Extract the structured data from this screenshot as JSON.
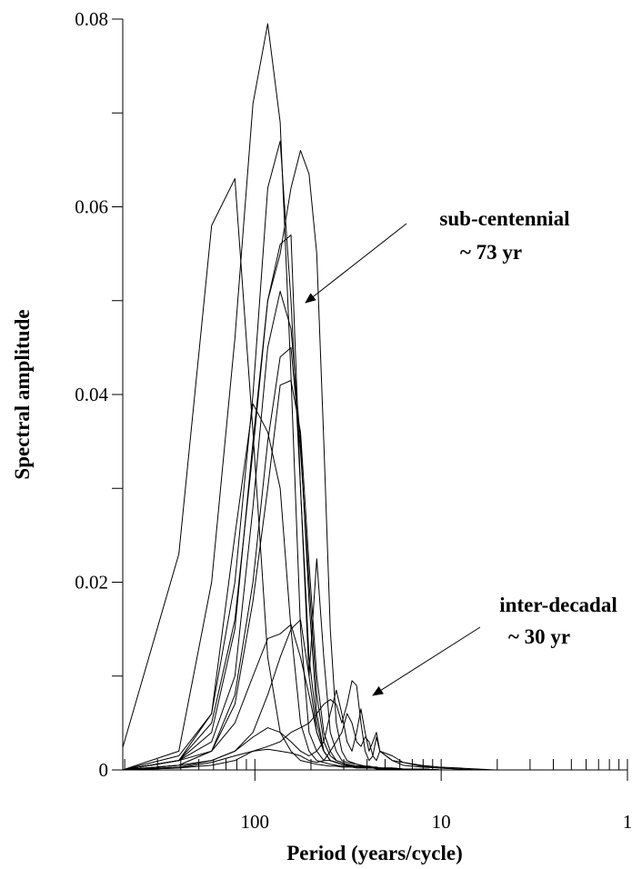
{
  "chart_data": {
    "type": "line",
    "x_label": "Period (years/cycle)",
    "y_label": "Spectral amplitude",
    "x_log": true,
    "xlim": [
      512,
      1
    ],
    "xticks": [
      100,
      10,
      1
    ],
    "xminor_ticks": [
      500,
      333.3,
      250,
      200,
      166.7,
      142.9,
      125,
      111.1,
      50,
      33.33,
      25,
      20,
      16.67,
      14.29,
      12.5,
      11.11,
      5,
      3.333,
      2.5,
      2,
      1.667,
      1.429,
      1.25,
      1.111
    ],
    "ylim": [
      0,
      0.08
    ],
    "yticks": [
      0,
      0.02,
      0.04,
      0.06,
      0.08
    ],
    "yminor_ticks": [
      0.01,
      0.03,
      0.05,
      0.07
    ],
    "line_color": "#000000",
    "annotations": [
      {
        "lines": [
          "sub-centennial",
          "~ 73 yr"
        ]
      },
      {
        "lines": [
          "inter-decadal",
          "~ 30 yr"
        ]
      }
    ],
    "x": [
      512,
      256,
      170.7,
      128,
      102.4,
      85.33,
      73.14,
      64,
      56.89,
      51.2,
      46.55,
      42.67,
      39.38,
      36.57,
      34.13,
      32,
      30.12,
      28.44,
      26.95,
      25.6,
      24.38,
      23.27,
      22.26,
      21.33,
      18.29,
      16,
      12.8,
      10.24,
      8,
      6.4,
      5.12
    ],
    "series": [
      {
        "values": [
          0.0024,
          0.023,
          0.058,
          0.063,
          0.036,
          0.012,
          0.004,
          0.002,
          0.001,
          0.0008,
          0.0006,
          0.0005,
          0.0004,
          0.0004,
          0.0003,
          0.0003,
          0.0003,
          0.0002,
          0.0002,
          0.0002,
          0.0002,
          0.0002,
          0.0001,
          0.0001,
          0.0001,
          0.0001,
          0.0001,
          0,
          0,
          0,
          0
        ]
      },
      {
        "values": [
          0,
          0.002,
          0.02,
          0.046,
          0.071,
          0.0795,
          0.069,
          0.042,
          0.015,
          0.004,
          0.002,
          0.001,
          0.001,
          0.0008,
          0.0006,
          0.0005,
          0.0005,
          0.0004,
          0.0004,
          0.0003,
          0.0003,
          0.0003,
          0.0002,
          0.0002,
          0.0002,
          0.0001,
          0.0001,
          0,
          0,
          0,
          0
        ]
      },
      {
        "values": [
          0,
          0.001,
          0.005,
          0.016,
          0.034,
          0.05,
          0.055,
          0.062,
          0.066,
          0.0635,
          0.055,
          0.035,
          0.015,
          0.005,
          0.002,
          0.001,
          0.0008,
          0.0006,
          0.0005,
          0.0004,
          0.0004,
          0.0003,
          0.0003,
          0.0002,
          0.0002,
          0.0001,
          0.0001,
          0,
          0,
          0,
          0
        ]
      },
      {
        "values": [
          0,
          0.001,
          0.006,
          0.02,
          0.04,
          0.062,
          0.067,
          0.05,
          0.03,
          0.012,
          0.005,
          0.002,
          0.001,
          0.0008,
          0.0006,
          0.0005,
          0.0005,
          0.0004,
          0.0003,
          0.0003,
          0.0003,
          0.0002,
          0.0002,
          0.0002,
          0.0001,
          0.0001,
          0.0001,
          0,
          0,
          0,
          0
        ]
      },
      {
        "values": [
          0,
          0.001,
          0.004,
          0.015,
          0.035,
          0.05,
          0.056,
          0.057,
          0.03,
          0.01,
          0.004,
          0.002,
          0.001,
          0.0008,
          0.0006,
          0.0005,
          0.0004,
          0.0004,
          0.0003,
          0.0003,
          0.0002,
          0.0002,
          0.0002,
          0.0001,
          0.0001,
          0.0001,
          0,
          0,
          0,
          0,
          0
        ]
      },
      {
        "values": [
          0,
          0.001,
          0.003,
          0.01,
          0.028,
          0.045,
          0.051,
          0.047,
          0.035,
          0.018,
          0.006,
          0.002,
          0.001,
          0.0008,
          0.0006,
          0.0005,
          0.0004,
          0.0004,
          0.0003,
          0.0003,
          0.0002,
          0.0002,
          0.0002,
          0.0001,
          0.0001,
          0.0001,
          0,
          0,
          0,
          0,
          0
        ]
      },
      {
        "values": [
          0,
          0.001,
          0.002,
          0.008,
          0.02,
          0.035,
          0.044,
          0.045,
          0.034,
          0.02,
          0.008,
          0.003,
          0.0015,
          0.001,
          0.0008,
          0.0006,
          0.0005,
          0.0004,
          0.0004,
          0.0003,
          0.0003,
          0.0002,
          0.0002,
          0.0002,
          0.0001,
          0.0001,
          0.0001,
          0,
          0,
          0,
          0
        ]
      },
      {
        "values": [
          0,
          0.0005,
          0.002,
          0.007,
          0.018,
          0.03,
          0.041,
          0.0415,
          0.036,
          0.022,
          0.01,
          0.004,
          0.002,
          0.001,
          0.0008,
          0.0006,
          0.0005,
          0.0004,
          0.0004,
          0.0003,
          0.0003,
          0.0002,
          0.0002,
          0.0002,
          0.0001,
          0.0001,
          0.0001,
          0,
          0,
          0,
          0
        ]
      },
      {
        "values": [
          0,
          0.0015,
          0.006,
          0.025,
          0.039,
          0.036,
          0.03,
          0.015,
          0.005,
          0.002,
          0.001,
          0.0008,
          0.0006,
          0.0005,
          0.0004,
          0.0004,
          0.0003,
          0.0003,
          0.0003,
          0.0002,
          0.0002,
          0.0002,
          0.0002,
          0.0001,
          0.0001,
          0.0001,
          0,
          0,
          0,
          0,
          0
        ]
      },
      {
        "values": [
          0,
          0.0005,
          0.001,
          0.002,
          0.004,
          0.008,
          0.012,
          0.015,
          0.016,
          0.01,
          0.0225,
          0.012,
          0.004,
          0.002,
          0.001,
          0.0008,
          0.0007,
          0.0006,
          0.0005,
          0.0004,
          0.0004,
          0.0003,
          0.0003,
          0.0002,
          0.0002,
          0.0001,
          0.0001,
          0,
          0,
          0,
          0
        ]
      },
      {
        "values": [
          0,
          0.0005,
          0.002,
          0.005,
          0.01,
          0.014,
          0.0145,
          0.0155,
          0.012,
          0.008,
          0.004,
          0.002,
          0.001,
          0.0008,
          0.0006,
          0.0005,
          0.0004,
          0.0004,
          0.0003,
          0.0003,
          0.0002,
          0.0002,
          0.0002,
          0.0001,
          0.0001,
          0.0001,
          0,
          0,
          0,
          0,
          0
        ]
      },
      {
        "values": [
          0,
          0.0002,
          0.0005,
          0.001,
          0.002,
          0.0025,
          0.003,
          0.004,
          0.0045,
          0.005,
          0.006,
          0.007,
          0.0075,
          0.007,
          0.005,
          0.007,
          0.0095,
          0.009,
          0.005,
          0.002,
          0.001,
          0.0015,
          0.0035,
          0.002,
          0.001,
          0.0008,
          0.0005,
          0.0003,
          0.0002,
          0.0001,
          0
        ]
      },
      {
        "values": [
          0,
          0.0003,
          0.001,
          0.002,
          0.0035,
          0.0045,
          0.004,
          0.003,
          0.002,
          0.0015,
          0.002,
          0.003,
          0.006,
          0.0085,
          0.006,
          0.003,
          0.002,
          0.004,
          0.0065,
          0.004,
          0.002,
          0.003,
          0.004,
          0.002,
          0.001,
          0.0005,
          0.0003,
          0.0002,
          0.0001,
          0,
          0
        ]
      },
      {
        "values": [
          0,
          0.0002,
          0.0008,
          0.0015,
          0.002,
          0.0022,
          0.002,
          0.0018,
          0.0015,
          0.001,
          0.0008,
          0.001,
          0.002,
          0.003,
          0.004,
          0.006,
          0.005,
          0.003,
          0.0025,
          0.0035,
          0.003,
          0.0015,
          0.001,
          0.002,
          0.0015,
          0.0008,
          0.0004,
          0.0002,
          0.0001,
          0,
          0
        ]
      }
    ]
  }
}
